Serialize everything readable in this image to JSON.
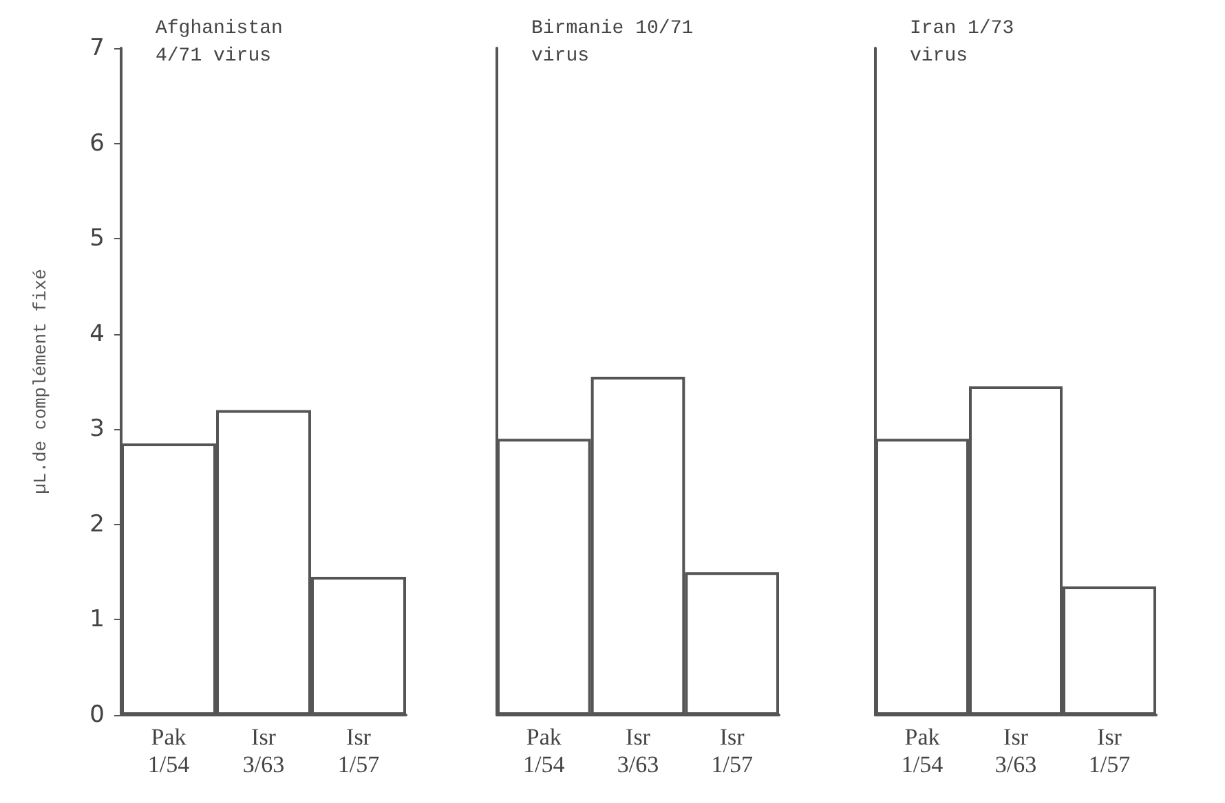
{
  "chart_data": [
    {
      "type": "bar",
      "title": "Afghanistan 4/71 virus",
      "ylabel": "µL.de complément fixé",
      "categories": [
        "Pak 1/54",
        "Isr 3/63",
        "Isr 1/57"
      ],
      "values": [
        2.85,
        3.2,
        1.45
      ],
      "color": "#555555",
      "ylim": [
        0,
        7
      ],
      "yticks": [
        0,
        1,
        2,
        3,
        4,
        5,
        6,
        7
      ]
    },
    {
      "type": "bar",
      "title": "Birmanie 10/71 virus",
      "categories": [
        "Pak 1/54",
        "Isr 3/63",
        "Isr 1/57"
      ],
      "values": [
        2.9,
        3.55,
        1.5
      ],
      "color": "#555555",
      "ylim": [
        0,
        7
      ],
      "tick_labels": "x"
    },
    {
      "type": "bar",
      "title": "Iran 1/73 virus",
      "categories": [
        "Pak 1/54",
        "Isr 3/63",
        "Isr 1/57"
      ],
      "values": [
        2.9,
        3.45,
        1.35
      ],
      "color": "#555555",
      "ylim": [
        0,
        7
      ],
      "tick_labels": "x"
    }
  ]
}
